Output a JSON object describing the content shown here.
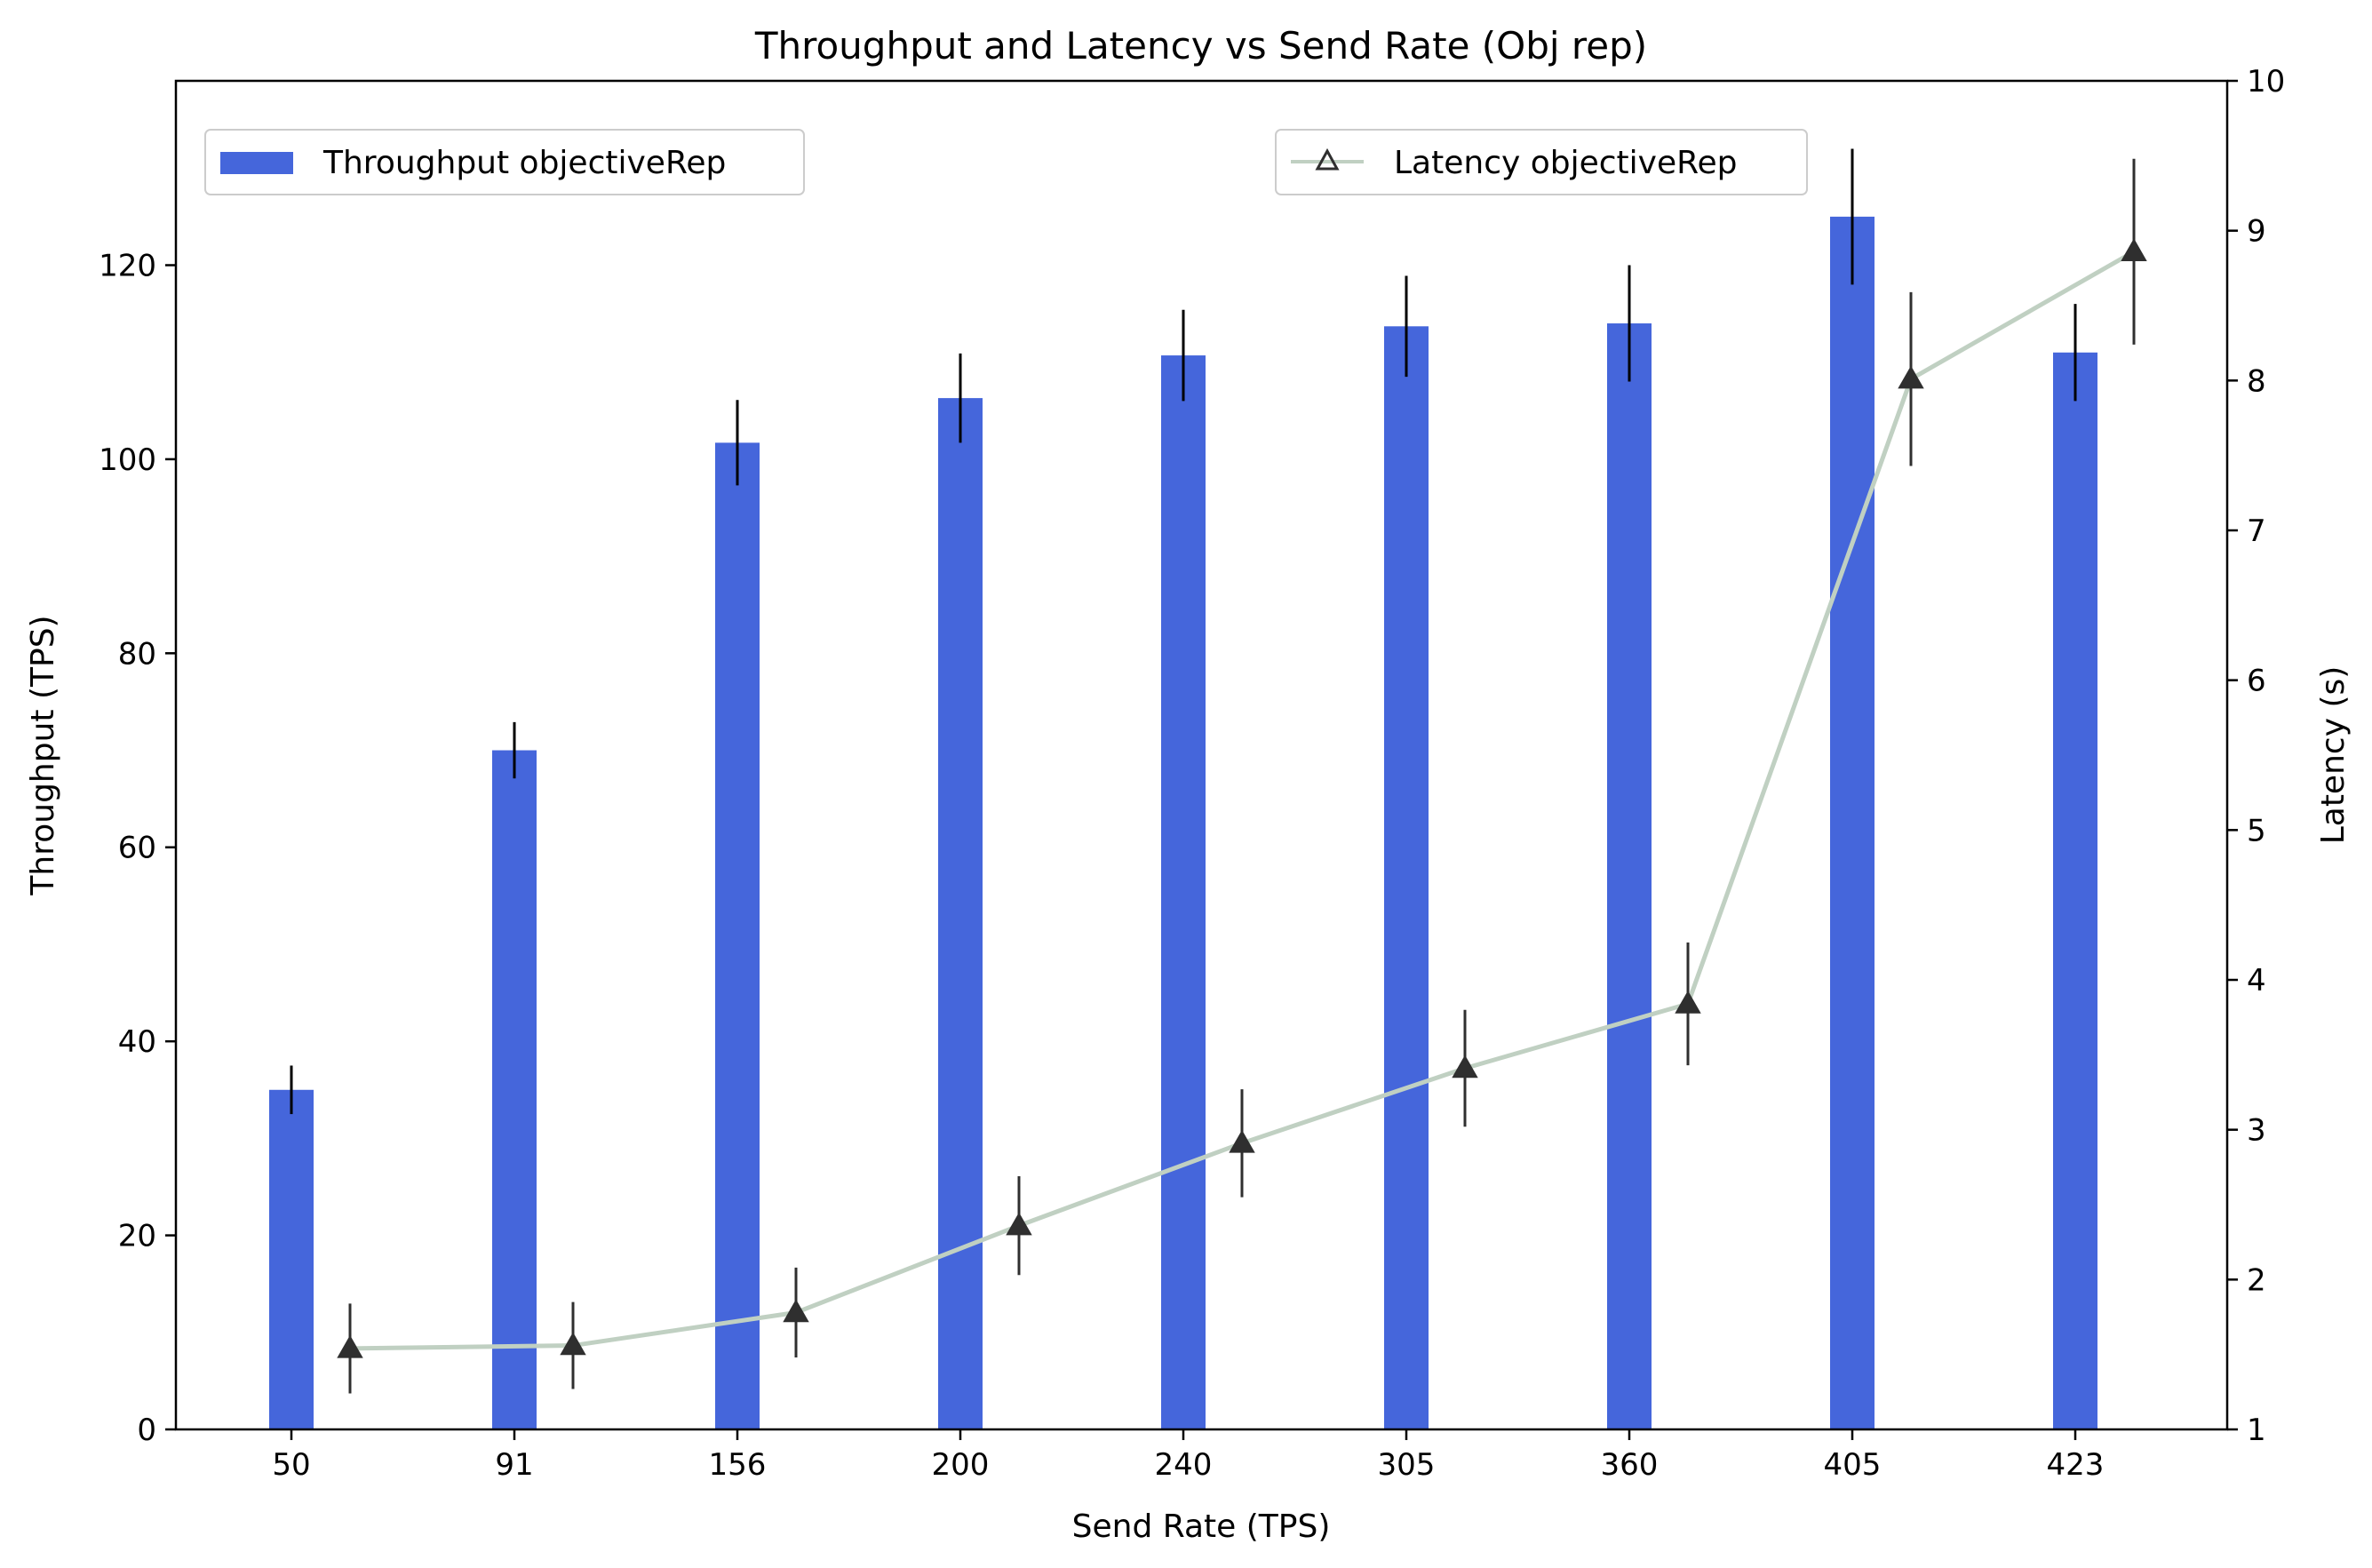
{
  "chart_data": {
    "type": "bar",
    "title": "Throughput and Latency vs Send Rate (Obj rep)",
    "xlabel": "Send Rate (TPS)",
    "ylabel": "Throughput (TPS)",
    "y2label": "Latency (s)",
    "categories": [
      "50",
      "91",
      "156",
      "200",
      "240",
      "305",
      "360",
      "405",
      "423"
    ],
    "ylim": [
      0,
      139
    ],
    "y2lim": [
      1,
      10
    ],
    "yticks": [
      0,
      20,
      40,
      60,
      80,
      100,
      120
    ],
    "y2ticks": [
      1,
      2,
      3,
      4,
      5,
      6,
      7,
      8,
      9,
      10
    ],
    "grid": false,
    "series": [
      {
        "name": "Throughput objectiveRep",
        "kind": "bar",
        "axis": "left",
        "color": "#4566db",
        "values": [
          35,
          70,
          101.7,
          106.3,
          110.7,
          113.7,
          114,
          125,
          111
        ],
        "errors": [
          2.5,
          2.9,
          4.4,
          4.6,
          4.7,
          5.2,
          6.0,
          7.0,
          5.0
        ]
      },
      {
        "name": "Latency objectiveRep",
        "kind": "line",
        "axis": "right",
        "color": "#c0d0c2",
        "marker": "triangle",
        "marker_color": "#2f2f2f",
        "values": [
          1.54,
          1.56,
          1.78,
          2.36,
          2.91,
          3.41,
          3.84,
          8.01,
          8.86
        ],
        "errors": [
          0.3,
          0.29,
          0.3,
          0.33,
          0.36,
          0.39,
          0.41,
          0.58,
          0.62
        ]
      }
    ],
    "legends": [
      {
        "series": 0,
        "placement": "upper left"
      },
      {
        "series": 1,
        "placement": "upper right"
      }
    ]
  }
}
